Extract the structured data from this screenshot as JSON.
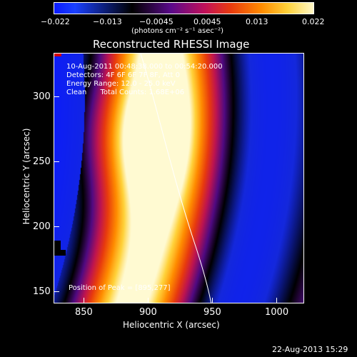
{
  "colorbar": {
    "tick_labels": [
      "−0.022",
      "−0.013",
      "−0.0045",
      "0.0045",
      "0.013",
      "0.022"
    ],
    "unit_label": "(photons cm⁻² s⁻¹ asec⁻²)"
  },
  "chart_data": {
    "type": "heatmap",
    "title": "Reconstructed RHESSI Image",
    "xlabel": "Heliocentric X (arcsec)",
    "ylabel": "Heliocentric Y (arcsec)",
    "xlim": [
      825,
      1020
    ],
    "ylim": [
      140,
      333
    ],
    "x_ticks": [
      "850",
      "900",
      "950",
      "1000"
    ],
    "y_ticks": [
      "150",
      "200",
      "250",
      "300"
    ],
    "colorscale": {
      "min": -0.022,
      "max": 0.022,
      "colors": [
        "#0a1aff",
        "#000000",
        "#5a0a8a",
        "#e83a0e",
        "#ff8c00",
        "#fff8c8"
      ]
    },
    "annotations": [
      "10-Aug-2011 00:48:38.000 to 00:54:20.000",
      "Detectors: 4F 6F 6F 7F 8F, Att 0",
      "Energy Range: 12.0 - 25.0 keV",
      "Clean      Total Counts: 1.68E+06"
    ],
    "peak_label": "Position of Peak = [895,277]",
    "peak": [
      895,
      277
    ]
  },
  "footer": {
    "timestamp": "22-Aug-2013 15:29"
  }
}
